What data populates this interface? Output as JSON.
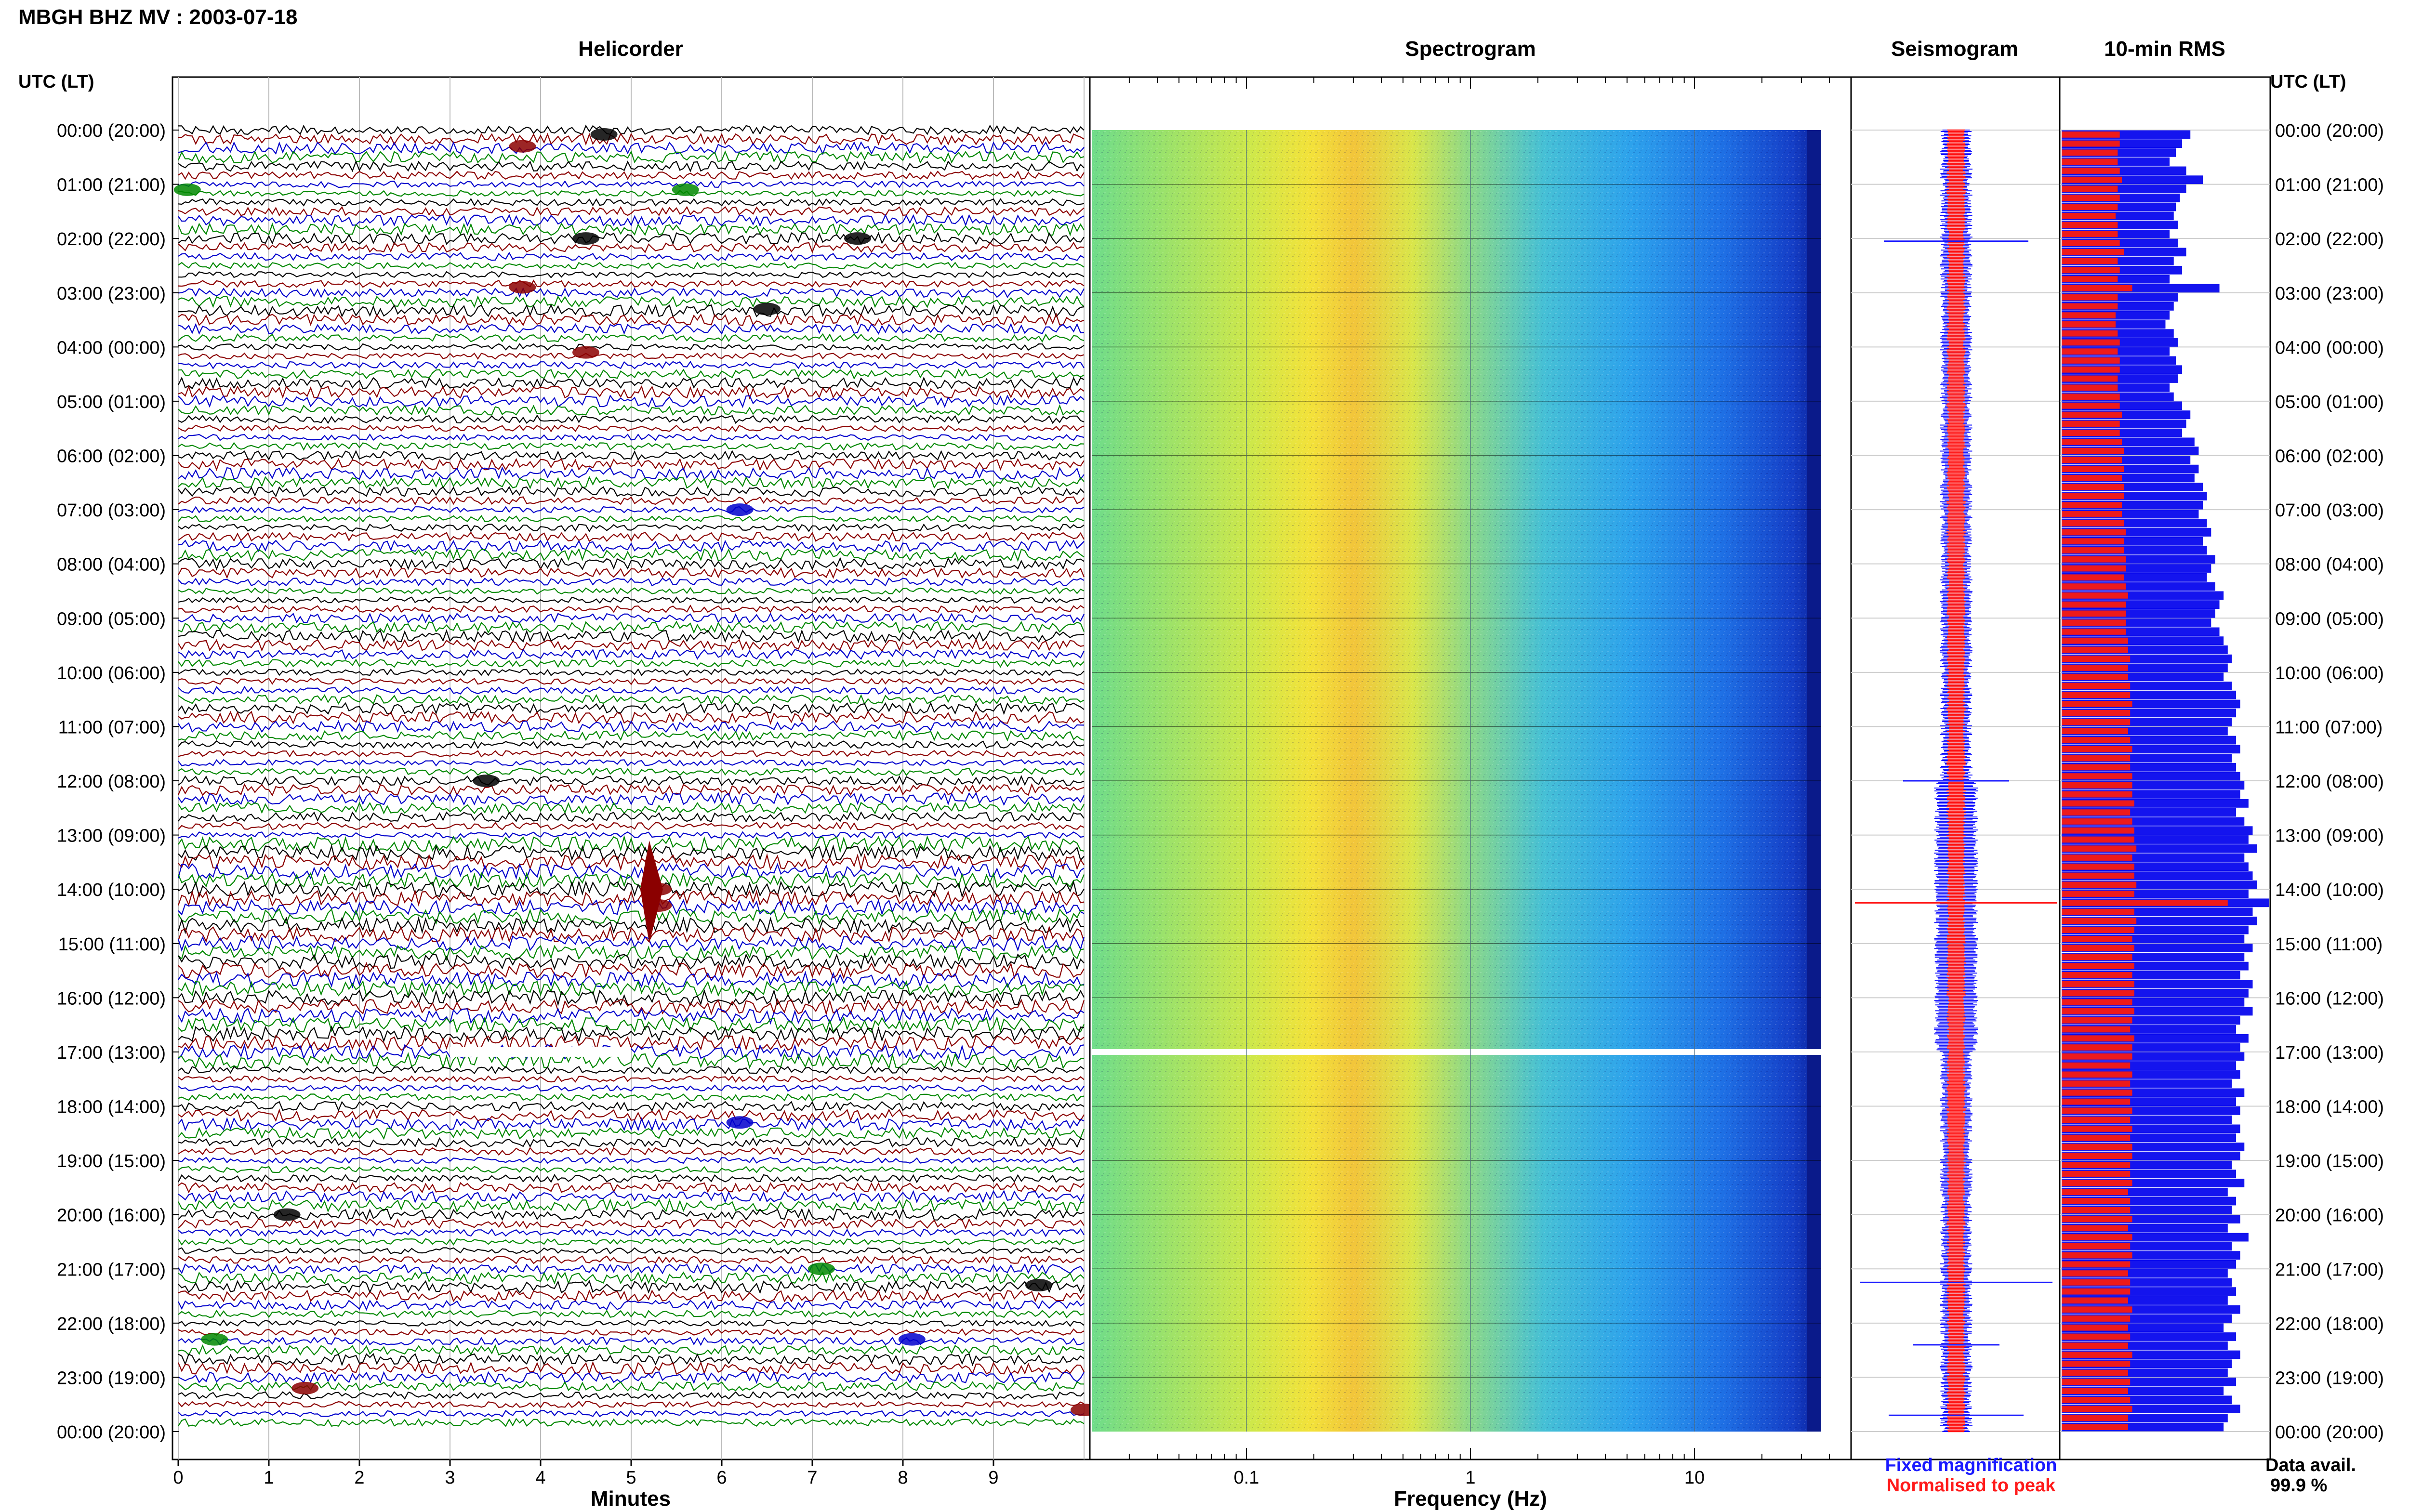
{
  "header": {
    "station_title": "MBGH BHZ MV : 2003-07-18",
    "utc_label_left": "UTC (LT)",
    "utc_label_right": "UTC (LT)"
  },
  "panels": {
    "helicorder_title": "Helicorder",
    "spectrogram_title": "Spectrogram",
    "seismogram_title": "Seismogram",
    "rms_title": "10-min RMS"
  },
  "axes": {
    "helicorder_xlabel": "Minutes",
    "spectrogram_xlabel": "Frequency (Hz)"
  },
  "legend": {
    "fixed": "Fixed magnification",
    "normalised": "Normalised to peak",
    "fixed_color": "#1a1aff",
    "normalised_color": "#ff1a1a"
  },
  "availability": {
    "label": "Data avail.",
    "value": "99.9 %"
  },
  "chart_data": [
    {
      "type": "line",
      "name": "helicorder",
      "title": "Helicorder",
      "xlabel": "Minutes",
      "xlim": [
        0,
        10
      ],
      "x_ticks": [
        "0",
        "1",
        "2",
        "3",
        "4",
        "5",
        "6",
        "7",
        "8",
        "9"
      ],
      "rows": 144,
      "trace_colors": [
        "#000000",
        "#8b0000",
        "#0000cc",
        "#008800"
      ],
      "y_tick_labels": [
        "00:00 (20:00)",
        "01:00 (21:00)",
        "02:00 (22:00)",
        "03:00 (23:00)",
        "04:00 (00:00)",
        "05:00 (01:00)",
        "06:00 (02:00)",
        "07:00 (03:00)",
        "08:00 (04:00)",
        "09:00 (05:00)",
        "10:00 (06:00)",
        "11:00 (07:00)",
        "12:00 (08:00)",
        "13:00 (09:00)",
        "14:00 (10:00)",
        "15:00 (11:00)",
        "16:00 (12:00)",
        "17:00 (13:00)",
        "18:00 (14:00)",
        "19:00 (15:00)",
        "20:00 (16:00)",
        "21:00 (17:00)",
        "22:00 (18:00)",
        "23:00 (19:00)",
        "00:00 (20:00)"
      ],
      "data_gap": {
        "hour": 17.0,
        "minute_start": 3.0,
        "minute_end": 5.0
      }
    },
    {
      "type": "heatmap",
      "name": "spectrogram",
      "title": "Spectrogram",
      "xlabel": "Frequency (Hz)",
      "x_scale": "log",
      "xlim": [
        0.02,
        50
      ],
      "x_tick_labels": [
        "0.1",
        "1",
        "10"
      ],
      "peak_frequency_hz": 0.35,
      "gap_hour": 17.0
    },
    {
      "type": "line",
      "name": "seismogram",
      "title": "Seismogram",
      "series": [
        {
          "name": "Fixed magnification",
          "color": "#1a1aff"
        },
        {
          "name": "Normalised to peak",
          "color": "#ff1a1a"
        }
      ]
    },
    {
      "type": "bar",
      "name": "rms",
      "title": "10-min RMS",
      "orientation": "horizontal",
      "categories_hours": "00:00-24:00 in 10-minute bins",
      "blue_values": [
        0.62,
        0.58,
        0.55,
        0.52,
        0.6,
        0.68,
        0.6,
        0.57,
        0.55,
        0.54,
        0.56,
        0.52,
        0.56,
        0.6,
        0.54,
        0.58,
        0.52,
        0.76,
        0.56,
        0.54,
        0.52,
        0.5,
        0.54,
        0.56,
        0.52,
        0.55,
        0.58,
        0.56,
        0.52,
        0.54,
        0.58,
        0.62,
        0.6,
        0.58,
        0.64,
        0.66,
        0.62,
        0.66,
        0.64,
        0.68,
        0.7,
        0.68,
        0.66,
        0.7,
        0.72,
        0.68,
        0.7,
        0.74,
        0.72,
        0.7,
        0.74,
        0.78,
        0.76,
        0.74,
        0.72,
        0.76,
        0.78,
        0.8,
        0.82,
        0.8,
        0.78,
        0.82,
        0.84,
        0.86,
        0.84,
        0.82,
        0.8,
        0.84,
        0.86,
        0.82,
        0.84,
        0.86,
        0.88,
        0.86,
        0.9,
        0.84,
        0.88,
        0.92,
        0.9,
        0.94,
        0.88,
        0.9,
        0.92,
        0.94,
        0.9,
        1.0,
        0.92,
        0.94,
        0.9,
        0.88,
        0.92,
        0.88,
        0.9,
        0.86,
        0.92,
        0.9,
        0.88,
        0.92,
        0.86,
        0.84,
        0.9,
        0.86,
        0.88,
        0.84,
        0.86,
        0.82,
        0.88,
        0.84,
        0.86,
        0.82,
        0.86,
        0.84,
        0.88,
        0.86,
        0.82,
        0.84,
        0.88,
        0.8,
        0.84,
        0.82,
        0.86,
        0.8,
        0.9,
        0.82,
        0.86,
        0.84,
        0.8,
        0.82,
        0.84,
        0.8,
        0.86,
        0.82,
        0.78,
        0.84,
        0.8,
        0.86,
        0.82,
        0.8,
        0.84,
        0.78,
        0.82,
        0.86,
        0.8,
        0.78
      ],
      "red_values": [
        0.28,
        0.28,
        0.27,
        0.27,
        0.28,
        0.29,
        0.27,
        0.28,
        0.27,
        0.26,
        0.27,
        0.27,
        0.28,
        0.3,
        0.27,
        0.28,
        0.27,
        0.34,
        0.27,
        0.27,
        0.26,
        0.26,
        0.27,
        0.28,
        0.27,
        0.28,
        0.28,
        0.27,
        0.27,
        0.28,
        0.28,
        0.29,
        0.28,
        0.28,
        0.29,
        0.3,
        0.29,
        0.3,
        0.29,
        0.3,
        0.3,
        0.29,
        0.29,
        0.3,
        0.31,
        0.3,
        0.3,
        0.31,
        0.31,
        0.3,
        0.31,
        0.32,
        0.31,
        0.31,
        0.31,
        0.31,
        0.32,
        0.32,
        0.33,
        0.32,
        0.32,
        0.33,
        0.33,
        0.34,
        0.33,
        0.33,
        0.32,
        0.33,
        0.34,
        0.33,
        0.33,
        0.34,
        0.34,
        0.34,
        0.35,
        0.33,
        0.34,
        0.35,
        0.35,
        0.36,
        0.34,
        0.35,
        0.35,
        0.36,
        0.35,
        0.8,
        0.35,
        0.36,
        0.35,
        0.34,
        0.35,
        0.34,
        0.35,
        0.34,
        0.35,
        0.35,
        0.34,
        0.35,
        0.34,
        0.33,
        0.35,
        0.34,
        0.34,
        0.33,
        0.34,
        0.33,
        0.34,
        0.33,
        0.34,
        0.33,
        0.34,
        0.33,
        0.34,
        0.34,
        0.33,
        0.33,
        0.34,
        0.32,
        0.33,
        0.33,
        0.34,
        0.32,
        0.34,
        0.33,
        0.34,
        0.33,
        0.32,
        0.33,
        0.33,
        0.32,
        0.34,
        0.33,
        0.32,
        0.33,
        0.32,
        0.34,
        0.33,
        0.32,
        0.33,
        0.32,
        0.33,
        0.34,
        0.32,
        0.32
      ]
    }
  ]
}
